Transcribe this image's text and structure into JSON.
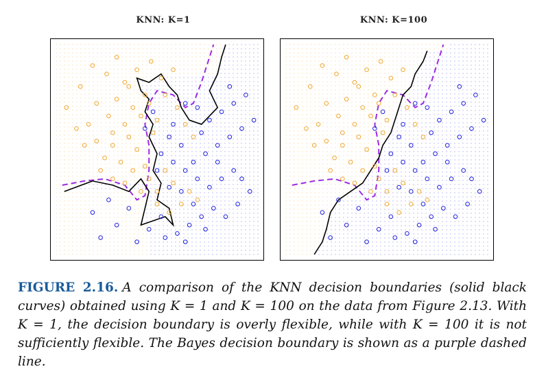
{
  "figure": {
    "panels": [
      {
        "id": "left",
        "title": "KNN: K=1"
      },
      {
        "id": "right",
        "title": "KNN: K=100"
      }
    ],
    "caption": {
      "label": "FIGURE 2.16.",
      "text": "A comparison of the KNN decision boundaries (solid black curves) obtained using K = 1 and K = 100 on the data from Figure 2.13. With K = 1, the decision boundary is overly flexible, while with K = 100 it is not sufficiently flexible. The Bayes decision boundary is shown as a purple dashed line."
    }
  },
  "colors": {
    "orange": "#f0a830",
    "blue": "#2222dd",
    "bayes": "#9a2be2",
    "knn": "#000000"
  },
  "chart_data": [
    {
      "type": "scatter",
      "title": "KNN: K=1",
      "xlim": [
        0,
        1
      ],
      "ylim": [
        0,
        1
      ],
      "grid_background": true,
      "series": [
        {
          "class": "orange",
          "points": [
            [
              0.05,
              0.7
            ],
            [
              0.12,
              0.8
            ],
            [
              0.18,
              0.9
            ],
            [
              0.25,
              0.86
            ],
            [
              0.3,
              0.94
            ],
            [
              0.34,
              0.82
            ],
            [
              0.4,
              0.88
            ],
            [
              0.47,
              0.92
            ],
            [
              0.52,
              0.84
            ],
            [
              0.58,
              0.88
            ],
            [
              0.1,
              0.6
            ],
            [
              0.16,
              0.62
            ],
            [
              0.2,
              0.72
            ],
            [
              0.26,
              0.66
            ],
            [
              0.3,
              0.74
            ],
            [
              0.34,
              0.62
            ],
            [
              0.38,
              0.7
            ],
            [
              0.42,
              0.66
            ],
            [
              0.46,
              0.72
            ],
            [
              0.5,
              0.64
            ],
            [
              0.14,
              0.52
            ],
            [
              0.2,
              0.54
            ],
            [
              0.24,
              0.46
            ],
            [
              0.28,
              0.52
            ],
            [
              0.32,
              0.44
            ],
            [
              0.36,
              0.56
            ],
            [
              0.4,
              0.5
            ],
            [
              0.44,
              0.42
            ],
            [
              0.48,
              0.58
            ],
            [
              0.22,
              0.4
            ],
            [
              0.28,
              0.36
            ],
            [
              0.34,
              0.34
            ],
            [
              0.38,
              0.4
            ],
            [
              0.42,
              0.3
            ],
            [
              0.46,
              0.36
            ],
            [
              0.5,
              0.3
            ],
            [
              0.54,
              0.4
            ],
            [
              0.58,
              0.34
            ],
            [
              0.62,
              0.24
            ],
            [
              0.66,
              0.3
            ],
            [
              0.7,
              0.26
            ],
            [
              0.56,
              0.2
            ],
            [
              0.5,
              0.24
            ],
            [
              0.6,
              0.7
            ],
            [
              0.64,
              0.62
            ],
            [
              0.68,
              0.56
            ],
            [
              0.54,
              0.76
            ],
            [
              0.44,
              0.76
            ],
            [
              0.36,
              0.8
            ],
            [
              0.28,
              0.58
            ]
          ]
        },
        {
          "class": "blue",
          "points": [
            [
              0.7,
              0.7
            ],
            [
              0.76,
              0.64
            ],
            [
              0.82,
              0.68
            ],
            [
              0.88,
              0.72
            ],
            [
              0.92,
              0.6
            ],
            [
              0.86,
              0.56
            ],
            [
              0.8,
              0.52
            ],
            [
              0.74,
              0.48
            ],
            [
              0.68,
              0.44
            ],
            [
              0.62,
              0.52
            ],
            [
              0.56,
              0.56
            ],
            [
              0.52,
              0.48
            ],
            [
              0.58,
              0.44
            ],
            [
              0.64,
              0.4
            ],
            [
              0.7,
              0.36
            ],
            [
              0.76,
              0.32
            ],
            [
              0.82,
              0.36
            ],
            [
              0.88,
              0.4
            ],
            [
              0.92,
              0.36
            ],
            [
              0.96,
              0.3
            ],
            [
              0.78,
              0.22
            ],
            [
              0.72,
              0.18
            ],
            [
              0.66,
              0.14
            ],
            [
              0.6,
              0.1
            ],
            [
              0.54,
              0.08
            ],
            [
              0.46,
              0.12
            ],
            [
              0.4,
              0.06
            ],
            [
              0.3,
              0.14
            ],
            [
              0.22,
              0.08
            ],
            [
              0.18,
              0.2
            ],
            [
              0.26,
              0.26
            ],
            [
              0.62,
              0.3
            ],
            [
              0.68,
              0.24
            ],
            [
              0.74,
              0.12
            ],
            [
              0.84,
              0.18
            ],
            [
              0.9,
              0.24
            ],
            [
              0.5,
              0.4
            ],
            [
              0.56,
              0.32
            ],
            [
              0.44,
              0.6
            ],
            [
              0.48,
              0.68
            ],
            [
              0.58,
              0.62
            ],
            [
              0.64,
              0.72
            ],
            [
              0.72,
              0.58
            ],
            [
              0.86,
              0.8
            ],
            [
              0.94,
              0.76
            ],
            [
              0.98,
              0.64
            ],
            [
              0.36,
              0.22
            ],
            [
              0.52,
              0.18
            ],
            [
              0.64,
              0.06
            ],
            [
              0.8,
              0.44
            ]
          ]
        }
      ],
      "knn_boundary": [
        [
          0.04,
          0.3
        ],
        [
          0.18,
          0.35
        ],
        [
          0.28,
          0.33
        ],
        [
          0.36,
          0.3
        ],
        [
          0.42,
          0.36
        ],
        [
          0.46,
          0.3
        ],
        [
          0.44,
          0.22
        ],
        [
          0.42,
          0.14
        ],
        [
          0.48,
          0.16
        ],
        [
          0.54,
          0.18
        ],
        [
          0.58,
          0.14
        ],
        [
          0.56,
          0.22
        ],
        [
          0.5,
          0.26
        ],
        [
          0.52,
          0.34
        ],
        [
          0.48,
          0.4
        ],
        [
          0.5,
          0.48
        ],
        [
          0.46,
          0.56
        ],
        [
          0.48,
          0.62
        ],
        [
          0.44,
          0.68
        ],
        [
          0.46,
          0.74
        ],
        [
          0.42,
          0.78
        ],
        [
          0.4,
          0.84
        ],
        [
          0.46,
          0.82
        ],
        [
          0.52,
          0.86
        ],
        [
          0.56,
          0.8
        ],
        [
          0.6,
          0.76
        ],
        [
          0.62,
          0.7
        ],
        [
          0.66,
          0.64
        ],
        [
          0.72,
          0.62
        ],
        [
          0.76,
          0.66
        ],
        [
          0.8,
          0.7
        ],
        [
          0.76,
          0.78
        ],
        [
          0.8,
          0.86
        ],
        [
          0.82,
          0.94
        ],
        [
          0.84,
          1.0
        ]
      ],
      "bayes_boundary": [
        [
          0.03,
          0.33
        ],
        [
          0.14,
          0.35
        ],
        [
          0.24,
          0.36
        ],
        [
          0.34,
          0.33
        ],
        [
          0.4,
          0.26
        ],
        [
          0.44,
          0.28
        ],
        [
          0.46,
          0.4
        ],
        [
          0.46,
          0.52
        ],
        [
          0.44,
          0.62
        ],
        [
          0.46,
          0.72
        ],
        [
          0.5,
          0.78
        ],
        [
          0.58,
          0.76
        ],
        [
          0.64,
          0.7
        ],
        [
          0.68,
          0.72
        ],
        [
          0.72,
          0.82
        ],
        [
          0.76,
          0.94
        ],
        [
          0.78,
          1.0
        ]
      ]
    },
    {
      "type": "scatter",
      "title": "KNN: K=100",
      "xlim": [
        0,
        1
      ],
      "ylim": [
        0,
        1
      ],
      "grid_background": true,
      "series": [
        {
          "class": "orange",
          "points": [
            [
              0.05,
              0.7
            ],
            [
              0.12,
              0.8
            ],
            [
              0.18,
              0.9
            ],
            [
              0.25,
              0.86
            ],
            [
              0.3,
              0.94
            ],
            [
              0.34,
              0.82
            ],
            [
              0.4,
              0.88
            ],
            [
              0.47,
              0.92
            ],
            [
              0.52,
              0.84
            ],
            [
              0.58,
              0.88
            ],
            [
              0.1,
              0.6
            ],
            [
              0.16,
              0.62
            ],
            [
              0.2,
              0.72
            ],
            [
              0.26,
              0.66
            ],
            [
              0.3,
              0.74
            ],
            [
              0.34,
              0.62
            ],
            [
              0.38,
              0.7
            ],
            [
              0.42,
              0.66
            ],
            [
              0.46,
              0.72
            ],
            [
              0.5,
              0.64
            ],
            [
              0.14,
              0.52
            ],
            [
              0.2,
              0.54
            ],
            [
              0.24,
              0.46
            ],
            [
              0.28,
              0.52
            ],
            [
              0.32,
              0.44
            ],
            [
              0.36,
              0.56
            ],
            [
              0.4,
              0.5
            ],
            [
              0.44,
              0.42
            ],
            [
              0.48,
              0.58
            ],
            [
              0.22,
              0.4
            ],
            [
              0.28,
              0.36
            ],
            [
              0.34,
              0.34
            ],
            [
              0.38,
              0.4
            ],
            [
              0.42,
              0.3
            ],
            [
              0.46,
              0.36
            ],
            [
              0.5,
              0.3
            ],
            [
              0.54,
              0.4
            ],
            [
              0.58,
              0.34
            ],
            [
              0.62,
              0.24
            ],
            [
              0.66,
              0.3
            ],
            [
              0.7,
              0.26
            ],
            [
              0.56,
              0.2
            ],
            [
              0.5,
              0.24
            ],
            [
              0.6,
              0.7
            ],
            [
              0.64,
              0.62
            ],
            [
              0.68,
              0.56
            ],
            [
              0.54,
              0.76
            ],
            [
              0.44,
              0.76
            ],
            [
              0.36,
              0.8
            ],
            [
              0.28,
              0.58
            ]
          ]
        },
        {
          "class": "blue",
          "points": [
            [
              0.7,
              0.7
            ],
            [
              0.76,
              0.64
            ],
            [
              0.82,
              0.68
            ],
            [
              0.88,
              0.72
            ],
            [
              0.92,
              0.6
            ],
            [
              0.86,
              0.56
            ],
            [
              0.8,
              0.52
            ],
            [
              0.74,
              0.48
            ],
            [
              0.68,
              0.44
            ],
            [
              0.62,
              0.52
            ],
            [
              0.56,
              0.56
            ],
            [
              0.52,
              0.48
            ],
            [
              0.58,
              0.44
            ],
            [
              0.64,
              0.4
            ],
            [
              0.7,
              0.36
            ],
            [
              0.76,
              0.32
            ],
            [
              0.82,
              0.36
            ],
            [
              0.88,
              0.4
            ],
            [
              0.92,
              0.36
            ],
            [
              0.96,
              0.3
            ],
            [
              0.78,
              0.22
            ],
            [
              0.72,
              0.18
            ],
            [
              0.66,
              0.14
            ],
            [
              0.6,
              0.1
            ],
            [
              0.54,
              0.08
            ],
            [
              0.46,
              0.12
            ],
            [
              0.4,
              0.06
            ],
            [
              0.3,
              0.14
            ],
            [
              0.22,
              0.08
            ],
            [
              0.18,
              0.2
            ],
            [
              0.26,
              0.26
            ],
            [
              0.62,
              0.3
            ],
            [
              0.68,
              0.24
            ],
            [
              0.74,
              0.12
            ],
            [
              0.84,
              0.18
            ],
            [
              0.9,
              0.24
            ],
            [
              0.5,
              0.4
            ],
            [
              0.56,
              0.32
            ],
            [
              0.44,
              0.6
            ],
            [
              0.48,
              0.68
            ],
            [
              0.58,
              0.62
            ],
            [
              0.64,
              0.72
            ],
            [
              0.72,
              0.58
            ],
            [
              0.86,
              0.8
            ],
            [
              0.94,
              0.76
            ],
            [
              0.98,
              0.64
            ],
            [
              0.36,
              0.22
            ],
            [
              0.52,
              0.18
            ],
            [
              0.64,
              0.06
            ],
            [
              0.8,
              0.44
            ]
          ]
        }
      ],
      "knn_boundary": [
        [
          0.14,
          0.0
        ],
        [
          0.18,
          0.06
        ],
        [
          0.2,
          0.12
        ],
        [
          0.22,
          0.2
        ],
        [
          0.26,
          0.26
        ],
        [
          0.32,
          0.3
        ],
        [
          0.38,
          0.34
        ],
        [
          0.42,
          0.4
        ],
        [
          0.46,
          0.46
        ],
        [
          0.48,
          0.52
        ],
        [
          0.52,
          0.58
        ],
        [
          0.54,
          0.64
        ],
        [
          0.56,
          0.7
        ],
        [
          0.58,
          0.76
        ],
        [
          0.62,
          0.8
        ],
        [
          0.64,
          0.86
        ],
        [
          0.68,
          0.92
        ],
        [
          0.7,
          0.97
        ]
      ],
      "bayes_boundary": [
        [
          0.03,
          0.33
        ],
        [
          0.14,
          0.35
        ],
        [
          0.24,
          0.36
        ],
        [
          0.34,
          0.33
        ],
        [
          0.4,
          0.26
        ],
        [
          0.44,
          0.28
        ],
        [
          0.46,
          0.4
        ],
        [
          0.46,
          0.52
        ],
        [
          0.44,
          0.62
        ],
        [
          0.46,
          0.72
        ],
        [
          0.5,
          0.78
        ],
        [
          0.58,
          0.76
        ],
        [
          0.64,
          0.7
        ],
        [
          0.68,
          0.72
        ],
        [
          0.72,
          0.82
        ],
        [
          0.76,
          0.94
        ],
        [
          0.78,
          1.0
        ]
      ]
    }
  ]
}
